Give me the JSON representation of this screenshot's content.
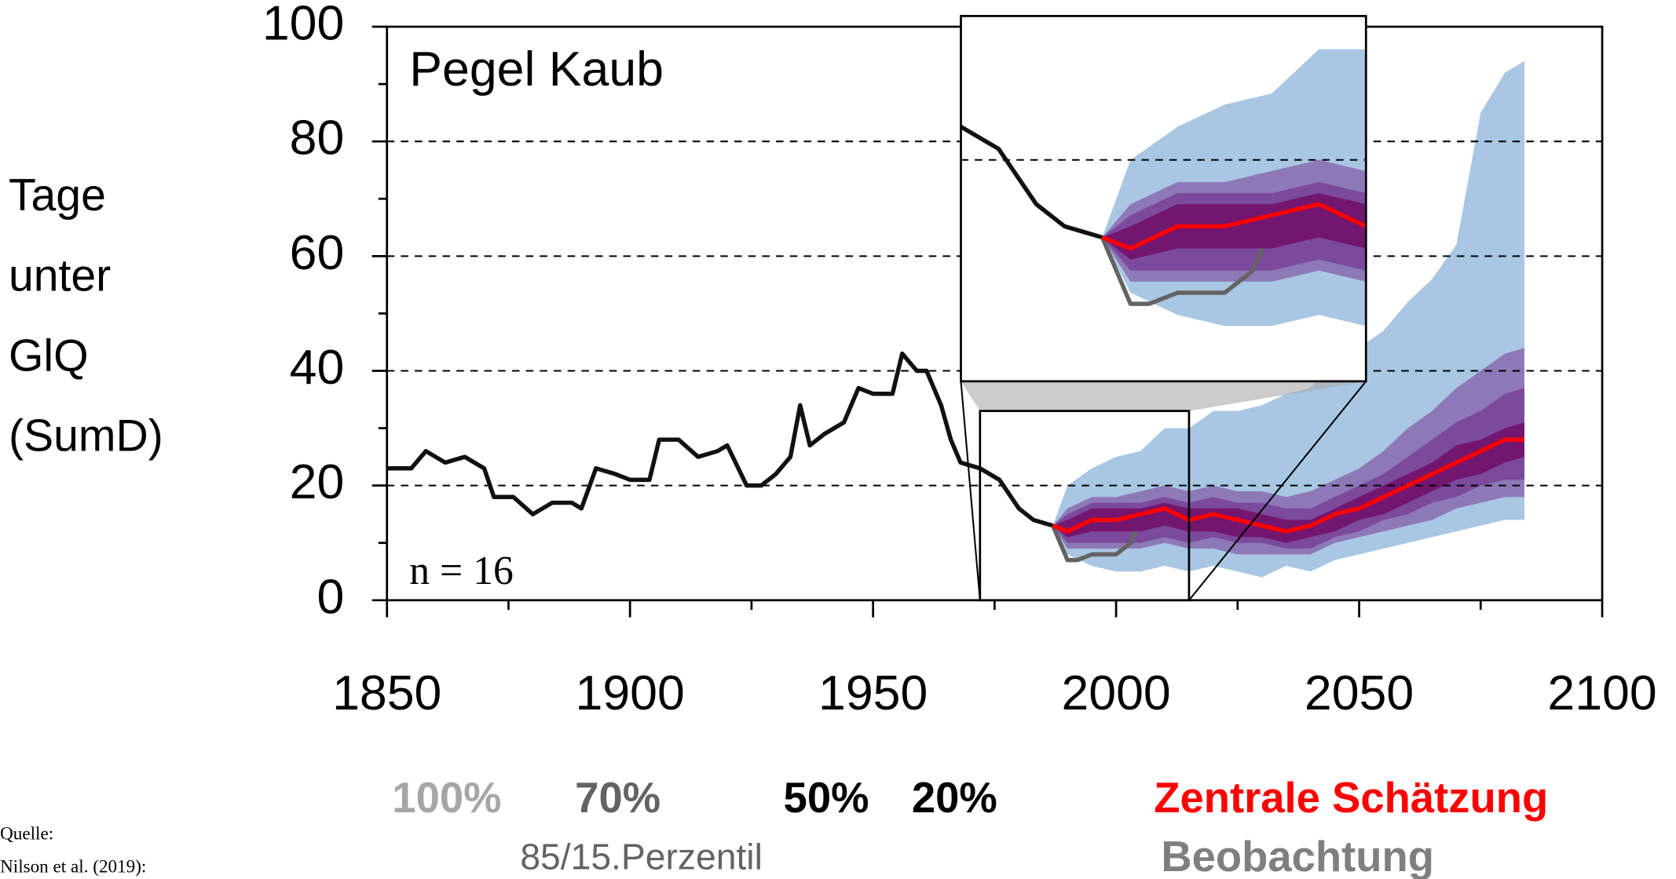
{
  "chart_data": {
    "type": "line",
    "title": "Pegel Kaub",
    "ylabel": [
      "Tage",
      "unter",
      "GlQ",
      "(SumD)"
    ],
    "annotation": "n = 16",
    "band_note": "85/15.Perzentil",
    "source": [
      "Quelle:",
      "Nilson et al. (2019):"
    ],
    "xlim": [
      1850,
      2100
    ],
    "xticks": [
      1850,
      1900,
      1950,
      2000,
      2050,
      2100
    ],
    "ylim": [
      0,
      100
    ],
    "yticks": [
      0,
      20,
      40,
      60,
      80,
      100
    ],
    "grid": true,
    "inset": {
      "xlim": [
        1972,
        2015
      ],
      "ylim": [
        0,
        33
      ]
    },
    "series": [
      {
        "name": "100%",
        "kind": "band",
        "color": "#a9c7e3",
        "label_color": "#a6a6a6",
        "x": [
          1987,
          1990,
          1995,
          2000,
          2005,
          2010,
          2015,
          2020,
          2025,
          2030,
          2035,
          2040,
          2045,
          2050,
          2055,
          2060,
          2065,
          2070,
          2075,
          2080,
          2084
        ],
        "high": [
          13,
          20,
          23,
          25,
          26,
          30,
          30,
          33,
          33,
          34,
          36,
          37,
          42,
          44,
          47,
          52,
          56,
          62,
          85,
          92,
          94
        ],
        "low": [
          13,
          8,
          6,
          5,
          5,
          6,
          5,
          6,
          5,
          4,
          6,
          5,
          7,
          8,
          9,
          10,
          11,
          12,
          13,
          14,
          14
        ]
      },
      {
        "name": "70%",
        "kind": "band",
        "color": "#8e79b8",
        "label_color": "#636363",
        "x": [
          1987,
          1990,
          1995,
          2000,
          2005,
          2010,
          2015,
          2020,
          2025,
          2030,
          2035,
          2040,
          2045,
          2050,
          2055,
          2060,
          2065,
          2070,
          2075,
          2080,
          2084
        ],
        "high": [
          13,
          16,
          18,
          18,
          19,
          20,
          19,
          20,
          19,
          19,
          18,
          19,
          21,
          23,
          26,
          30,
          33,
          37,
          40,
          43,
          44
        ],
        "low": [
          13,
          9,
          9,
          9,
          9,
          10,
          9,
          9,
          8,
          8,
          8,
          8,
          10,
          11,
          12,
          13,
          14,
          16,
          17,
          18,
          18
        ]
      },
      {
        "name": "50%",
        "kind": "band",
        "color": "#7b4a9c",
        "label_color": "#000000",
        "x": [
          1987,
          1990,
          1995,
          2000,
          2005,
          2010,
          2015,
          2020,
          2025,
          2030,
          2035,
          2040,
          2045,
          2050,
          2055,
          2060,
          2065,
          2070,
          2075,
          2080,
          2084
        ],
        "high": [
          13,
          15,
          17,
          17,
          17,
          18,
          17,
          18,
          17,
          17,
          16,
          16,
          18,
          20,
          22,
          25,
          28,
          31,
          33,
          36,
          37
        ],
        "low": [
          13,
          10,
          10,
          10,
          10,
          11,
          10,
          11,
          10,
          10,
          9,
          9,
          11,
          12,
          14,
          15,
          17,
          18,
          20,
          21,
          21
        ]
      },
      {
        "name": "20%",
        "kind": "band",
        "color": "#72166f",
        "label_color": "#000000",
        "x": [
          1987,
          1990,
          1995,
          2000,
          2005,
          2010,
          2015,
          2020,
          2025,
          2030,
          2035,
          2040,
          2045,
          2050,
          2055,
          2060,
          2065,
          2070,
          2075,
          2080,
          2084
        ],
        "high": [
          13,
          14,
          16,
          16,
          16,
          17,
          16,
          16,
          16,
          15,
          14,
          14,
          16,
          18,
          20,
          22,
          24,
          27,
          28,
          30,
          31
        ],
        "low": [
          13,
          11,
          12,
          12,
          12,
          13,
          12,
          12,
          11,
          11,
          10,
          11,
          12,
          14,
          15,
          17,
          19,
          21,
          22,
          24,
          25
        ]
      },
      {
        "kind": "line",
        "color": "#111111",
        "x": [
          1850,
          1855,
          1858,
          1862,
          1866,
          1870,
          1872,
          1876,
          1880,
          1884,
          1888,
          1890,
          1893,
          1897,
          1900,
          1904,
          1906,
          1910,
          1914,
          1918,
          1920,
          1924,
          1927,
          1930,
          1933,
          1935,
          1937,
          1940,
          1944,
          1947,
          1950,
          1954,
          1956,
          1959,
          1961,
          1964,
          1966,
          1968,
          1972,
          1976,
          1980,
          1983,
          1987
        ],
        "values": [
          23,
          23,
          26,
          24,
          25,
          23,
          18,
          18,
          15,
          17,
          17,
          16,
          23,
          22,
          21,
          21,
          28,
          28,
          25,
          26,
          27,
          20,
          20,
          22,
          25,
          34,
          27,
          29,
          31,
          37,
          36,
          36,
          43,
          40,
          40,
          34,
          28,
          24,
          23,
          21,
          16,
          14,
          13
        ]
      },
      {
        "name": "Beobachtung",
        "kind": "line",
        "color": "#636363",
        "label_color": "#7f7f7f",
        "x": [
          1987,
          1990,
          1992,
          1995,
          1998,
          2000,
          2003,
          2004
        ],
        "values": [
          13,
          7,
          7,
          8,
          8,
          8,
          10,
          12
        ]
      },
      {
        "name": "Zentrale Schätzung",
        "kind": "line",
        "color": "#ff0000",
        "label_color": "#ff0000",
        "x": [
          1987,
          1990,
          1995,
          2000,
          2005,
          2010,
          2015,
          2020,
          2025,
          2030,
          2035,
          2040,
          2045,
          2050,
          2055,
          2060,
          2065,
          2070,
          2075,
          2080,
          2084
        ],
        "values": [
          13,
          12,
          14,
          14,
          15,
          16,
          14,
          15,
          14,
          13,
          12,
          13,
          15,
          16,
          18,
          20,
          22,
          24,
          26,
          28,
          28
        ]
      }
    ]
  }
}
